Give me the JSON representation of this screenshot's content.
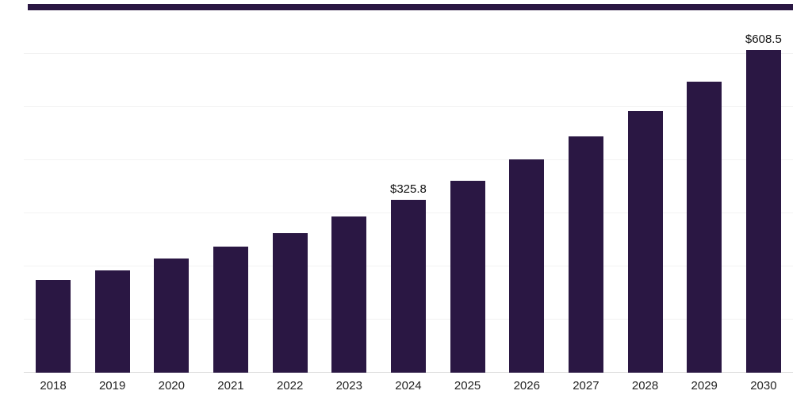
{
  "chart_data": {
    "type": "bar",
    "title": "",
    "xlabel": "",
    "ylabel": "",
    "categories": [
      "2018",
      "2019",
      "2020",
      "2021",
      "2022",
      "2023",
      "2024",
      "2025",
      "2026",
      "2027",
      "2028",
      "2029",
      "2030"
    ],
    "values": [
      175.0,
      193.0,
      214.5,
      237.5,
      262.5,
      293.5,
      325.8,
      361.5,
      401.0,
      444.8,
      493.5,
      547.5,
      608.5
    ],
    "data_labels": [
      "",
      "",
      "",
      "",
      "",
      "",
      "$325.8",
      "",
      "",
      "",
      "",
      "",
      "$608.5"
    ],
    "ylim": [
      0,
      687
    ],
    "gridlines": [
      100,
      200,
      300,
      400,
      500,
      600
    ],
    "grid_on": true,
    "legend_position": "none",
    "colors": {
      "bar": "#2a1743",
      "accent_bar": "#2a1743",
      "gridline": "#f2f2f2",
      "axis_line": "#d9d9d9",
      "value_label": "#111111",
      "tick_label": "#222222",
      "background": "#ffffff"
    }
  }
}
